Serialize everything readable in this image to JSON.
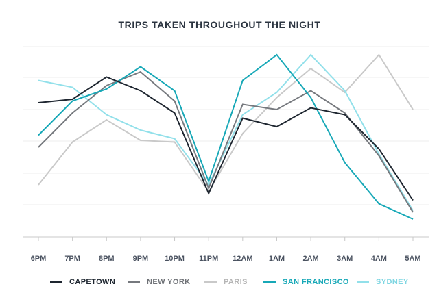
{
  "chart_data": {
    "type": "line",
    "title": "TRIPS TAKEN THROUGHOUT THE NIGHT",
    "xlabel": "",
    "ylabel": "",
    "categories": [
      "6PM",
      "7PM",
      "8PM",
      "9PM",
      "10PM",
      "11PM",
      "12AM",
      "1AM",
      "2AM",
      "3AM",
      "4AM",
      "5AM"
    ],
    "ylim": [
      0,
      100
    ],
    "grid": true,
    "legend": "bottom",
    "series": [
      {
        "name": "CAPETOWN",
        "color": "#1e2630",
        "values": [
          70,
          72,
          85,
          77,
          64,
          17,
          61,
          56,
          67,
          63,
          43,
          13
        ]
      },
      {
        "name": "NEW YORK",
        "color": "#76797e",
        "values": [
          44,
          64,
          80,
          88,
          71,
          20,
          69,
          66,
          77,
          64,
          39,
          6
        ]
      },
      {
        "name": "PARIS",
        "color": "#c9c9c9",
        "values": [
          22,
          47,
          60,
          48,
          47,
          18,
          52,
          73,
          90,
          76,
          98,
          66
        ]
      },
      {
        "name": "SAN FRANCISCO",
        "color": "#17a8b7",
        "values": [
          51,
          71,
          78,
          91,
          77,
          24,
          83,
          98,
          73,
          35,
          11,
          2
        ]
      },
      {
        "name": "SYDNEY",
        "color": "#92e0ea",
        "values": [
          83,
          79,
          63,
          54,
          49,
          22,
          63,
          76,
          98,
          77,
          40,
          7
        ]
      }
    ]
  }
}
